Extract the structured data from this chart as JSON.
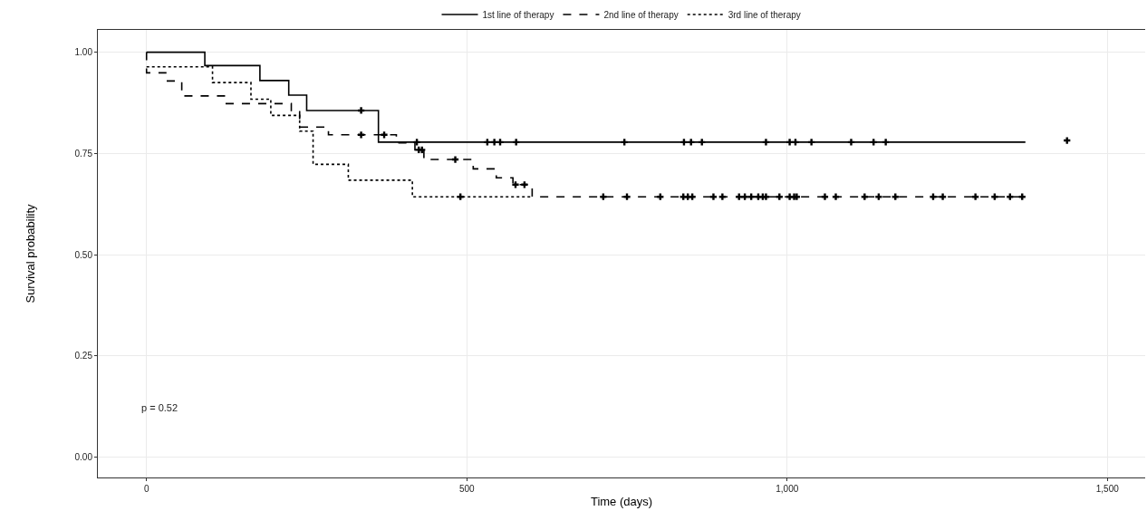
{
  "chart_data": {
    "type": "step",
    "xlabel": "Time (days)",
    "ylabel": "Survival probability",
    "annotations": [
      "p = 0.52"
    ],
    "xlim": [
      -76,
      1559
    ],
    "ylim": [
      -0.05,
      1.055
    ],
    "xticks": [
      0,
      500,
      {
        "value": 1000,
        "label": "1,000"
      },
      {
        "value": 1500,
        "label": "1,500"
      }
    ],
    "yticks": [
      {
        "value": 0,
        "label": "0.00"
      },
      {
        "value": 0.25,
        "label": "0.25"
      },
      {
        "value": 0.5,
        "label": "0.50"
      },
      {
        "value": 0.75,
        "label": "0.75"
      },
      {
        "value": 1,
        "label": "1.00"
      }
    ],
    "grid": true,
    "legend": "top",
    "series": [
      {
        "name": "1st line of therapy",
        "color": "#000000",
        "line_style": "solid",
        "x": [
          0,
          91,
          177,
          222,
          250,
          362,
          1372
        ],
        "values": [
          1,
          0.967,
          0.93,
          0.894,
          0.856,
          0.778,
          0.778
        ]
      },
      {
        "name": "2nd line of therapy",
        "color": "#000000",
        "line_style": "dashed",
        "x": [
          0,
          0,
          30,
          55,
          123,
          226,
          239,
          284,
          390,
          419,
          433,
          510,
          546,
          572,
          602,
          1372
        ],
        "values": [
          1,
          0.949,
          0.929,
          0.892,
          0.873,
          0.853,
          0.815,
          0.796,
          0.776,
          0.759,
          0.735,
          0.712,
          0.69,
          0.673,
          0.643,
          0.643
        ]
      },
      {
        "name": "3rd line of therapy",
        "color": "#000000",
        "line_style": "dotted",
        "x": [
          0,
          103,
          163,
          194,
          239,
          260,
          315,
          415,
          602
        ],
        "values": [
          0.964,
          0.925,
          0.884,
          0.844,
          0.805,
          0.723,
          0.684,
          0.643,
          0.643
        ]
      },
      {
        "type": "scatter",
        "marker": "cross",
        "color": "#000000",
        "x": [
          335,
          422,
          532,
          543,
          552,
          577,
          746,
          839,
          850,
          867,
          967,
          1004,
          1013,
          1038,
          1100,
          1135,
          1154,
          1437
        ],
        "values": [
          0.856,
          0.778,
          0.778,
          0.778,
          0.778,
          0.778,
          0.778,
          0.778,
          0.778,
          0.778,
          0.778,
          0.778,
          0.778,
          0.778,
          0.778,
          0.778,
          0.778,
          0.782
        ]
      },
      {
        "type": "scatter",
        "marker": "cross",
        "color": "#000000",
        "x": [
          335,
          371,
          425,
          430,
          482,
          576,
          590,
          713,
          750,
          802,
          838,
          845,
          852,
          885,
          899,
          925,
          934,
          944,
          955,
          962,
          967,
          988,
          1004,
          1011,
          1015,
          1059,
          1076,
          1121,
          1143,
          1169,
          1228,
          1243,
          1294,
          1324,
          1348,
          1367
        ],
        "values": [
          0.796,
          0.796,
          0.759,
          0.759,
          0.735,
          0.673,
          0.673,
          0.643,
          0.643,
          0.643,
          0.643,
          0.643,
          0.643,
          0.643,
          0.643,
          0.643,
          0.643,
          0.643,
          0.643,
          0.643,
          0.643,
          0.643,
          0.643,
          0.643,
          0.643,
          0.643,
          0.643,
          0.643,
          0.643,
          0.643,
          0.643,
          0.643,
          0.643,
          0.643,
          0.643,
          0.643
        ]
      },
      {
        "type": "scatter",
        "marker": "cross",
        "color": "#000000",
        "x": [
          490
        ],
        "values": [
          0.643
        ]
      }
    ]
  }
}
